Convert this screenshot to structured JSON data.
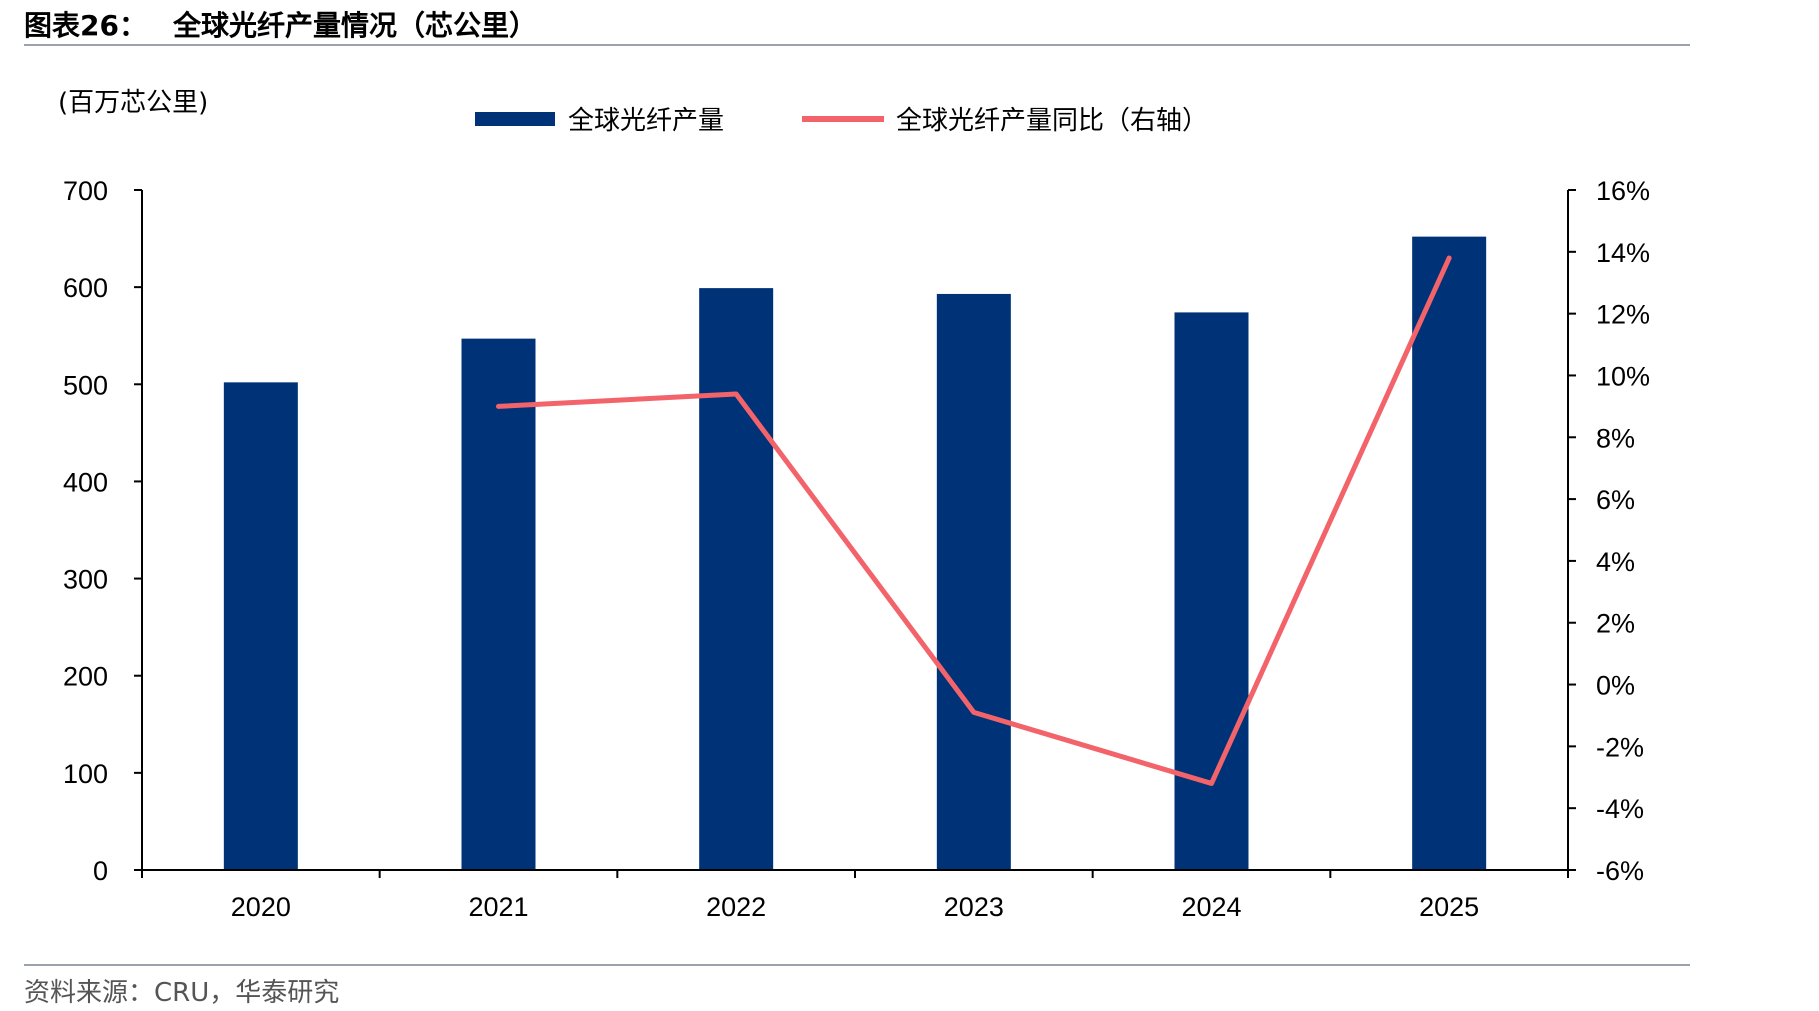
{
  "header": {
    "figure_no": "图表26：",
    "title": "全球光纤产量情况（芯公里）"
  },
  "footer": {
    "source": "资料来源：CRU，华泰研究"
  },
  "colors": {
    "bar": "#003278",
    "line": "#f2636a",
    "axis": "#000000",
    "rule": "#9aa3ad"
  },
  "chart_data": {
    "type": "bar",
    "title": "全球光纤产量情况（芯公里）",
    "ylabel": "(百万芯公里)",
    "categories": [
      "2020",
      "2021",
      "2022",
      "2023",
      "2024",
      "2025"
    ],
    "series": [
      {
        "name": "全球光纤产量",
        "type": "bar",
        "axis": "left",
        "values": [
          502,
          547,
          599,
          593,
          574,
          652
        ]
      },
      {
        "name": "全球光纤产量同比（右轴）",
        "type": "line",
        "axis": "right",
        "values": [
          null,
          9.0,
          9.4,
          -0.9,
          -3.2,
          13.8
        ]
      }
    ],
    "ylim": [
      0,
      700
    ],
    "y_ticks": [
      "0",
      "100",
      "200",
      "300",
      "400",
      "500",
      "600",
      "700"
    ],
    "y2lim": [
      -6,
      16
    ],
    "y2_ticks": [
      "-6%",
      "-4%",
      "-2%",
      "0%",
      "2%",
      "4%",
      "6%",
      "8%",
      "10%",
      "12%",
      "14%",
      "16%"
    ],
    "legend_position": "top",
    "grid": false
  }
}
